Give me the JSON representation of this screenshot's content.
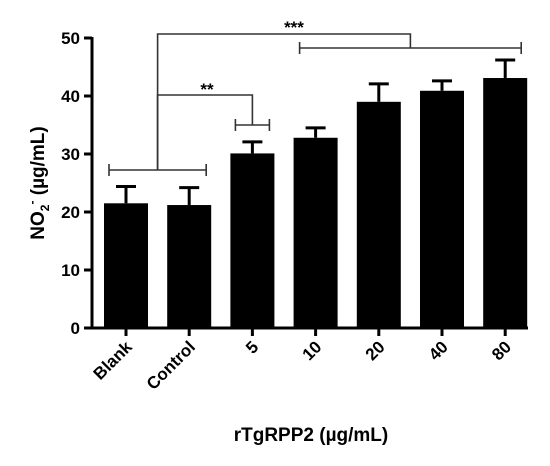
{
  "chart_data": {
    "type": "bar",
    "categories": [
      "Blank",
      "Control",
      "5",
      "10",
      "20",
      "40",
      "80"
    ],
    "values": [
      21.5,
      21.2,
      30.1,
      32.8,
      39.0,
      40.9,
      43.1
    ],
    "errors": [
      2.9,
      3.0,
      2.0,
      1.7,
      3.1,
      1.7,
      3.1
    ],
    "bar_color": "#000000",
    "xlabel": "rTgRPP2 (µg/mL)",
    "ylabel": {
      "main": "NO",
      "sub": "2",
      "sup": "-",
      "rest": " (µg/mL)"
    },
    "ylim": [
      0,
      50
    ],
    "yticks": [
      0,
      10,
      20,
      30,
      40,
      50
    ],
    "grid": false,
    "significance": [
      {
        "label": "**",
        "from_group": [
          0,
          1
        ],
        "to_group": [
          2,
          2
        ]
      },
      {
        "label": "***",
        "from_group": [
          0,
          1
        ],
        "to_group": [
          3,
          6
        ]
      }
    ]
  }
}
